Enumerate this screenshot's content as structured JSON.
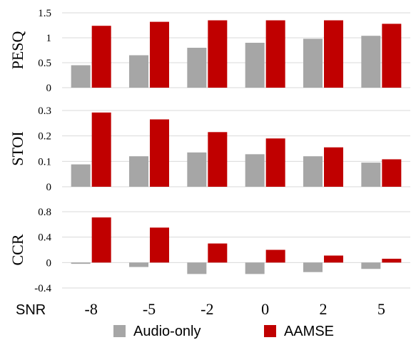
{
  "chart_data": {
    "type": "bar",
    "x_axis_label": "SNR",
    "categories": [
      "-8",
      "-5",
      "-2",
      "0",
      "2",
      "5"
    ],
    "legend": {
      "placement": "bottom",
      "entries": [
        {
          "name": "Audio-only",
          "color": "#a6a6a6"
        },
        {
          "name": "AAMSE",
          "color": "#c00000"
        }
      ]
    },
    "panels": [
      {
        "ylabel": "PESQ",
        "ylim": [
          0,
          1.5
        ],
        "yticks": [
          "0",
          "0.5",
          "1",
          "1.5"
        ],
        "ytick_values": [
          0,
          0.5,
          1,
          1.5
        ],
        "grid": true,
        "series": [
          {
            "name": "Audio-only",
            "color": "#a6a6a6",
            "values": [
              0.45,
              0.65,
              0.8,
              0.9,
              0.98,
              1.04
            ]
          },
          {
            "name": "AAMSE",
            "color": "#c00000",
            "values": [
              1.24,
              1.32,
              1.35,
              1.35,
              1.35,
              1.28
            ]
          }
        ]
      },
      {
        "ylabel": "STOI",
        "ylim": [
          0,
          0.3
        ],
        "yticks": [
          "0",
          "0.1",
          "0.2",
          "0.3"
        ],
        "ytick_values": [
          0,
          0.1,
          0.2,
          0.3
        ],
        "grid": true,
        "series": [
          {
            "name": "Audio-only",
            "color": "#a6a6a6",
            "values": [
              0.088,
              0.12,
              0.135,
              0.128,
              0.12,
              0.095
            ]
          },
          {
            "name": "AAMSE",
            "color": "#c00000",
            "values": [
              0.292,
              0.265,
              0.215,
              0.19,
              0.155,
              0.108
            ]
          }
        ]
      },
      {
        "ylabel": "CCR",
        "ylim": [
          -0.4,
          0.8
        ],
        "yticks": [
          "-0.4",
          "0",
          "0.4",
          "0.8"
        ],
        "ytick_values": [
          -0.4,
          0,
          0.4,
          0.8
        ],
        "grid": true,
        "series": [
          {
            "name": "Audio-only",
            "color": "#a6a6a6",
            "values": [
              -0.02,
              -0.07,
              -0.18,
              -0.18,
              -0.15,
              -0.1
            ]
          },
          {
            "name": "AAMSE",
            "color": "#c00000",
            "values": [
              0.71,
              0.55,
              0.3,
              0.2,
              0.11,
              0.06
            ]
          }
        ]
      }
    ]
  }
}
